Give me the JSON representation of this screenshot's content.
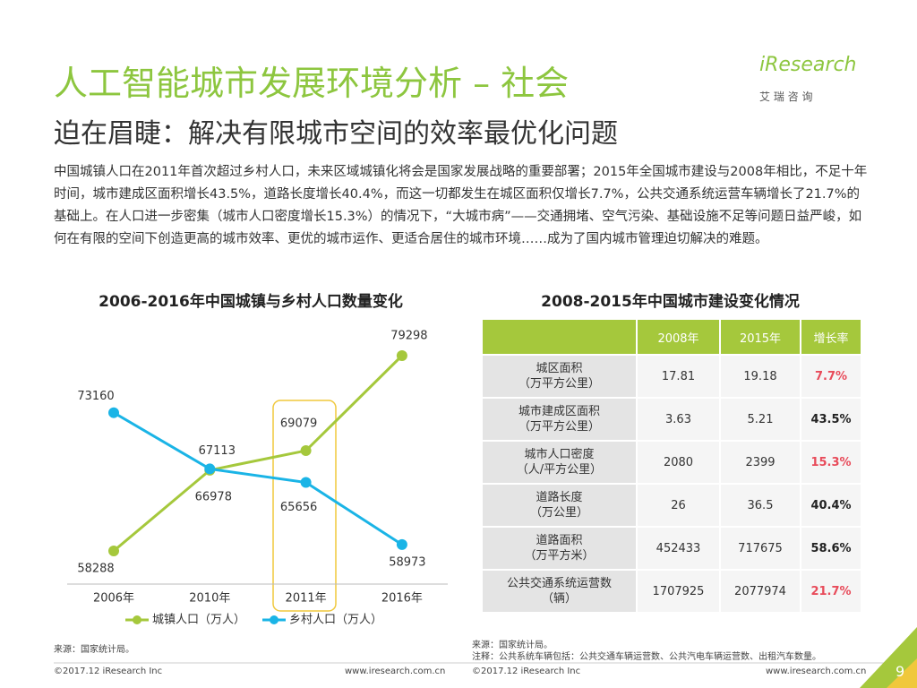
{
  "header": {
    "title": "人工智能城市发展环境分析 – 社会",
    "subtitle": "迫在眉睫：解决有限城市空间的效率最优化问题",
    "logo": "iResearch",
    "logo_sub": "艾 瑞 咨 询"
  },
  "paragraph": "中国城镇人口在2011年首次超过乡村人口，未来区域城镇化将会是国家发展战略的重要部署；2015年全国城市建设与2008年相比，不足十年时间，城市建成区面积增长43.5%，道路长度增长40.4%，而这一切都发生在城区面积仅增长7.7%，公共交通系统运营车辆增长了21.7%的基础上。在人口进一步密集（城市人口密度增长15.3%）的情况下，“大城市病”——交通拥堵、空气污染、基础设施不足等问题日益严峻，如何在有限的空间下创造更高的城市效率、更优的城市运作、更适合居住的城市环境……成为了国内城市管理迫切解决的难题。",
  "chart_data": {
    "type": "line",
    "title": "2006-2016年中国城镇与乡村人口数量变化",
    "categories": [
      "2006年",
      "2010年",
      "2011年",
      "2016年"
    ],
    "series": [
      {
        "name": "城镇人口（万人）",
        "color": "#a5c83c",
        "values": [
          58288,
          66978,
          69079,
          79298
        ]
      },
      {
        "name": "乡村人口（万人）",
        "color": "#1ab4e6",
        "values": [
          73160,
          67113,
          65656,
          58973
        ]
      }
    ],
    "highlight_color": "#f0c83c"
  },
  "table": {
    "title": "2008-2015年中国城市建设变化情况",
    "header": [
      "2008年",
      "2015年",
      "增长率"
    ],
    "header_color": "#a5c83c",
    "rows": [
      {
        "label": [
          "城区面积",
          "（万平方公里）"
        ],
        "cells": [
          "17.81",
          "19.18",
          "7.7%"
        ],
        "growth_color": "#e84b5a"
      },
      {
        "label": [
          "城市建成区面积",
          "（万平方公里）"
        ],
        "cells": [
          "3.63",
          "5.21",
          "43.5%"
        ],
        "growth_color": "#222222"
      },
      {
        "label": [
          "城市人口密度",
          "（人/平方公里）"
        ],
        "cells": [
          "2080",
          "2399",
          "15.3%"
        ],
        "growth_color": "#e84b5a"
      },
      {
        "label": [
          "道路长度",
          "（万公里）"
        ],
        "cells": [
          "26",
          "36.5",
          "40.4%"
        ],
        "growth_color": "#222222"
      },
      {
        "label": [
          "道路面积",
          "（万平方米）"
        ],
        "cells": [
          "452433",
          "717675",
          "58.6%"
        ],
        "growth_color": "#222222"
      },
      {
        "label": [
          "公共交通系统运营数",
          "（辆）"
        ],
        "cells": [
          "1707925",
          "2077974",
          "21.7%"
        ],
        "growth_color": "#e84b5a"
      }
    ]
  },
  "source_left": "来源：国家统计局。",
  "source_right": "来源：国家统计局。",
  "note_right": "注释：公共系统车辆包括：公共交通车辆运营数、公共汽电车辆运营数、出租汽车数量。",
  "footer": {
    "copyright_left": "©2017.12 iResearch Inc",
    "url_left": "www.iresearch.com.cn",
    "copyright_right": "©2017.12 iResearch Inc",
    "url_right": "www.iresearch.com.cn",
    "page": "9"
  }
}
